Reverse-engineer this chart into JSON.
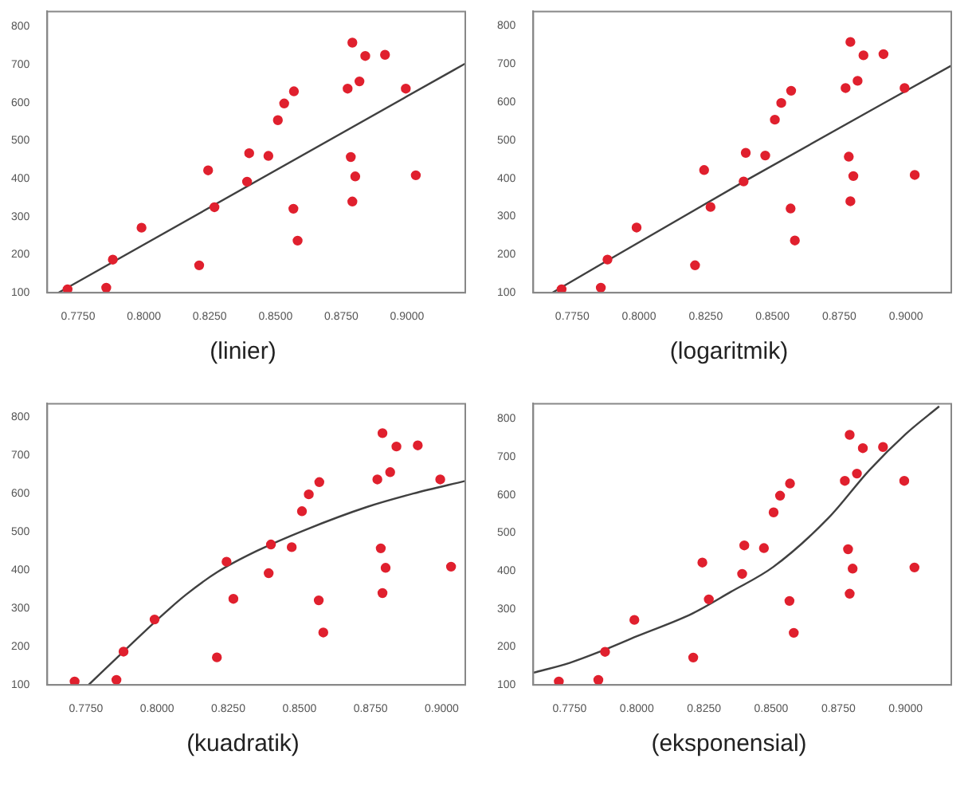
{
  "chart_data": [
    {
      "type": "scatter",
      "title": "(linier)",
      "xlim": [
        0.7633,
        0.9221
      ],
      "ylim": [
        100,
        840
      ],
      "xticks": [
        {
          "value": 0.775,
          "label": "0.7750"
        },
        {
          "value": 0.8,
          "label": "0.8000"
        },
        {
          "value": 0.825,
          "label": "0.8250"
        },
        {
          "value": 0.85,
          "label": "0.8500"
        },
        {
          "value": 0.875,
          "label": "0.8750"
        },
        {
          "value": 0.9,
          "label": "0.9000"
        }
      ],
      "yticks": [
        100,
        200,
        300,
        400,
        500,
        600,
        700,
        800
      ],
      "grid": false,
      "legend": false,
      "marker": "circle",
      "series": [
        {
          "type": "scatter",
          "color": "#e0202e",
          "x": [
            0.771,
            0.7857,
            0.7882,
            0.7991,
            0.821,
            0.8244,
            0.8268,
            0.8392,
            0.84,
            0.8473,
            0.8509,
            0.8533,
            0.857,
            0.8568,
            0.8584,
            0.8774,
            0.8792,
            0.8786,
            0.8792,
            0.8803,
            0.8819,
            0.8841,
            0.8916,
            0.8995,
            0.9033
          ],
          "values": [
            109,
            113,
            187,
            271,
            172,
            422,
            325,
            392,
            467,
            460,
            554,
            598,
            630,
            321,
            237,
            637,
            758,
            457,
            340,
            406,
            656,
            723,
            726,
            637,
            409
          ]
        },
        {
          "type": "line",
          "color": "#404040",
          "marker": "none",
          "x": [
            0.7675,
            0.9221
          ],
          "values": [
            100,
            703
          ]
        }
      ]
    },
    {
      "type": "scatter",
      "title": "(logaritmik)",
      "xlim": [
        0.7604,
        0.917
      ],
      "ylim": [
        100,
        838
      ],
      "xticks": [
        {
          "value": 0.775,
          "label": "0.7750"
        },
        {
          "value": 0.8,
          "label": "0.8000"
        },
        {
          "value": 0.825,
          "label": "0.8250"
        },
        {
          "value": 0.85,
          "label": "0.8500"
        },
        {
          "value": 0.875,
          "label": "0.8750"
        },
        {
          "value": 0.9,
          "label": "0.9000"
        }
      ],
      "yticks": [
        100,
        200,
        300,
        400,
        500,
        600,
        700,
        800
      ],
      "grid": false,
      "legend": false,
      "marker": "circle",
      "series": [
        {
          "type": "scatter",
          "color": "#e0202e",
          "x": [
            0.771,
            0.7857,
            0.7882,
            0.7991,
            0.821,
            0.8244,
            0.8268,
            0.8392,
            0.84,
            0.8473,
            0.8509,
            0.8533,
            0.857,
            0.8568,
            0.8584,
            0.8774,
            0.8792,
            0.8786,
            0.8792,
            0.8803,
            0.8819,
            0.8841,
            0.8916,
            0.8995,
            0.9033
          ],
          "values": [
            109,
            113,
            187,
            271,
            172,
            422,
            325,
            392,
            467,
            460,
            554,
            598,
            630,
            321,
            237,
            637,
            758,
            457,
            340,
            406,
            656,
            723,
            726,
            637,
            409
          ]
        },
        {
          "type": "line",
          "color": "#404040",
          "marker": "none",
          "x": [
            0.7675,
            0.8394,
            0.917
          ],
          "values": [
            100,
            392,
            696
          ]
        }
      ]
    },
    {
      "type": "scatter",
      "title": "(kuadratik)",
      "xlim": [
        0.7614,
        0.9083
      ],
      "ylim": [
        100,
        835
      ],
      "xticks": [
        {
          "value": 0.775,
          "label": "0.7750"
        },
        {
          "value": 0.8,
          "label": "0.8000"
        },
        {
          "value": 0.825,
          "label": "0.8250"
        },
        {
          "value": 0.85,
          "label": "0.8500"
        },
        {
          "value": 0.875,
          "label": "0.8750"
        },
        {
          "value": 0.9,
          "label": "0.9000"
        }
      ],
      "yticks": [
        100,
        200,
        300,
        400,
        500,
        600,
        700,
        800
      ],
      "grid": false,
      "legend": false,
      "marker": "circle",
      "series": [
        {
          "type": "scatter",
          "color": "#e0202e",
          "x": [
            0.771,
            0.7857,
            0.7882,
            0.7991,
            0.821,
            0.8244,
            0.8268,
            0.8392,
            0.84,
            0.8473,
            0.8509,
            0.8533,
            0.857,
            0.8568,
            0.8584,
            0.8774,
            0.8792,
            0.8786,
            0.8792,
            0.8803,
            0.8819,
            0.8841,
            0.8916,
            0.8995,
            0.9033
          ],
          "values": [
            109,
            113,
            187,
            271,
            172,
            422,
            325,
            392,
            467,
            460,
            554,
            598,
            630,
            321,
            237,
            637,
            758,
            457,
            340,
            406,
            656,
            723,
            726,
            637,
            409
          ]
        },
        {
          "type": "line",
          "color": "#404040",
          "marker": "none",
          "x": [
            0.7759,
            0.79,
            0.8,
            0.81,
            0.8212,
            0.835,
            0.852,
            0.8737,
            0.89,
            0.9083
          ],
          "values": [
            100,
            200,
            270,
            335,
            395,
            450,
            505,
            565,
            600,
            633
          ]
        }
      ]
    },
    {
      "type": "scatter",
      "title": "(eksponensial)",
      "xlim": [
        0.7615,
        0.917
      ],
      "ylim": [
        100,
        840
      ],
      "xticks": [
        {
          "value": 0.775,
          "label": "0.7750"
        },
        {
          "value": 0.8,
          "label": "0.8000"
        },
        {
          "value": 0.825,
          "label": "0.8250"
        },
        {
          "value": 0.85,
          "label": "0.8500"
        },
        {
          "value": 0.875,
          "label": "0.8750"
        },
        {
          "value": 0.9,
          "label": "0.9000"
        }
      ],
      "yticks": [
        100,
        200,
        300,
        400,
        500,
        600,
        700,
        800
      ],
      "grid": false,
      "legend": false,
      "marker": "circle",
      "series": [
        {
          "type": "scatter",
          "color": "#e0202e",
          "x": [
            0.771,
            0.7857,
            0.7882,
            0.7991,
            0.821,
            0.8244,
            0.8268,
            0.8392,
            0.84,
            0.8473,
            0.8509,
            0.8533,
            0.857,
            0.8568,
            0.8584,
            0.8774,
            0.8792,
            0.8786,
            0.8792,
            0.8803,
            0.8819,
            0.8841,
            0.8916,
            0.8995,
            0.9033
          ],
          "values": [
            109,
            113,
            187,
            271,
            172,
            422,
            325,
            392,
            467,
            460,
            554,
            598,
            630,
            321,
            237,
            637,
            758,
            457,
            340,
            406,
            656,
            723,
            726,
            637,
            409
          ]
        },
        {
          "type": "line",
          "color": "#404040",
          "marker": "none",
          "x": [
            0.7615,
            0.775,
            0.7868,
            0.8,
            0.8207,
            0.835,
            0.8507,
            0.8714,
            0.8865,
            0.9,
            0.9125
          ],
          "values": [
            132,
            158,
            189,
            228,
            288,
            345,
            410,
            540,
            665,
            760,
            833
          ]
        }
      ]
    }
  ]
}
